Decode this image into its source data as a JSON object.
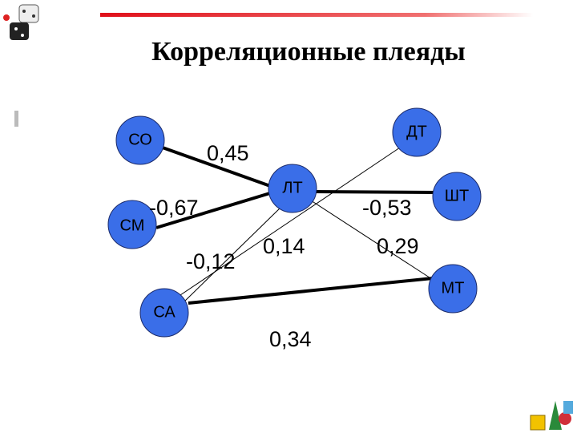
{
  "title": "Корреляционные плеяды",
  "nodes": [
    {
      "label": "СО"
    },
    {
      "label": "ДТ"
    },
    {
      "label": "ЛТ"
    },
    {
      "label": "СМ"
    },
    {
      "label": "ШТ"
    },
    {
      "label": "МТ"
    },
    {
      "label": "СА"
    }
  ],
  "edge_labels": [
    {
      "label": "0,45"
    },
    {
      "label": "-0,67"
    },
    {
      "label": "-0,53"
    },
    {
      "label": "-0,12"
    },
    {
      "label": "0,14"
    },
    {
      "label": "0,29"
    },
    {
      "label": "0,34"
    }
  ]
}
